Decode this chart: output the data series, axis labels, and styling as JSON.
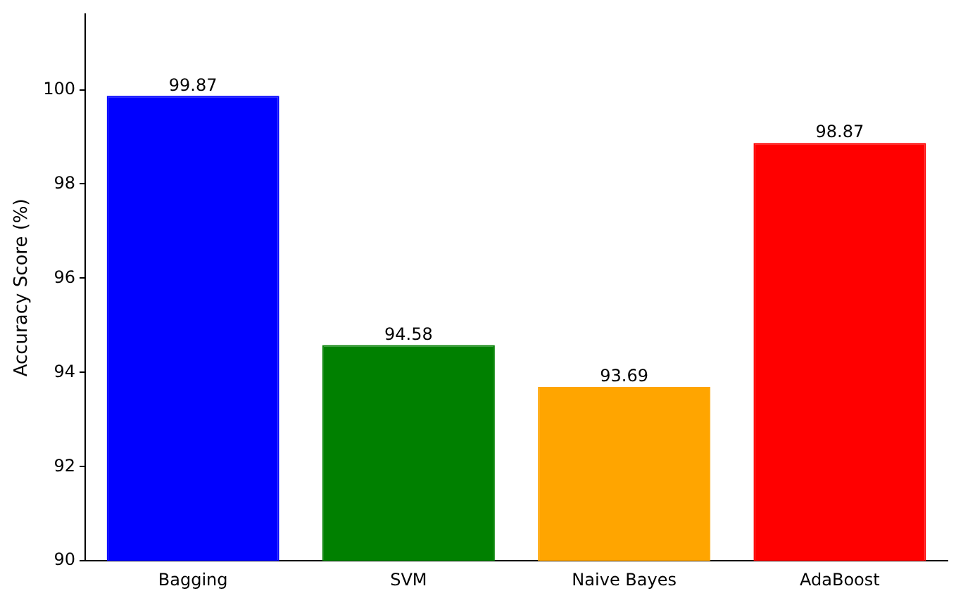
{
  "chart_data": {
    "type": "bar",
    "ylabel": "Accuracy Score (%)",
    "categories": [
      "Bagging",
      "SVM",
      "Naive Bayes",
      "AdaBoost"
    ],
    "values": [
      99.87,
      94.58,
      93.69,
      98.87
    ],
    "colors": [
      "#0000ff",
      "#008000",
      "#ffa500",
      "#ff0000"
    ],
    "ylim": [
      90,
      101.6
    ],
    "yticks": [
      90,
      92,
      94,
      96,
      98,
      100
    ],
    "grid": false,
    "legend": false,
    "data_labels": true
  }
}
